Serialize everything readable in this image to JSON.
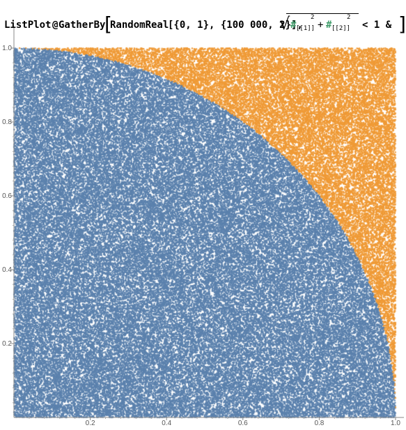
{
  "notebook": {
    "input": {
      "func_listplot": "ListPlot",
      "op_prefix": "@",
      "func_gatherby": "GatherBy",
      "func_randomreal": "RandomReal",
      "args_randomreal": "[{0, 1}, {100 000, 2}],",
      "sqrt_var_1": "#",
      "sqrt_idx_1": "[[1]]",
      "sqrt_exp_1": "2",
      "sqrt_plus": "+",
      "sqrt_var_2": "#",
      "sqrt_idx_2": "[[2]]",
      "sqrt_exp_2": "2",
      "tail": "< 1 &"
    }
  },
  "chart_data": {
    "type": "scatter",
    "point_count": 100000,
    "series": [
      {
        "rule": "x^2 + y^2 < 1",
        "color": "#5b81ad"
      },
      {
        "rule": "x^2 + y^2 >= 1",
        "color": "#ef9a36"
      }
    ],
    "x_ticks": [
      "0.2",
      "0.4",
      "0.6",
      "0.8",
      "1.0"
    ],
    "y_ticks": [
      "0.2",
      "0.4",
      "0.6",
      "0.8",
      "1.0"
    ],
    "xlim": [
      0,
      1
    ],
    "ylim": [
      0,
      1
    ],
    "grid": false
  }
}
